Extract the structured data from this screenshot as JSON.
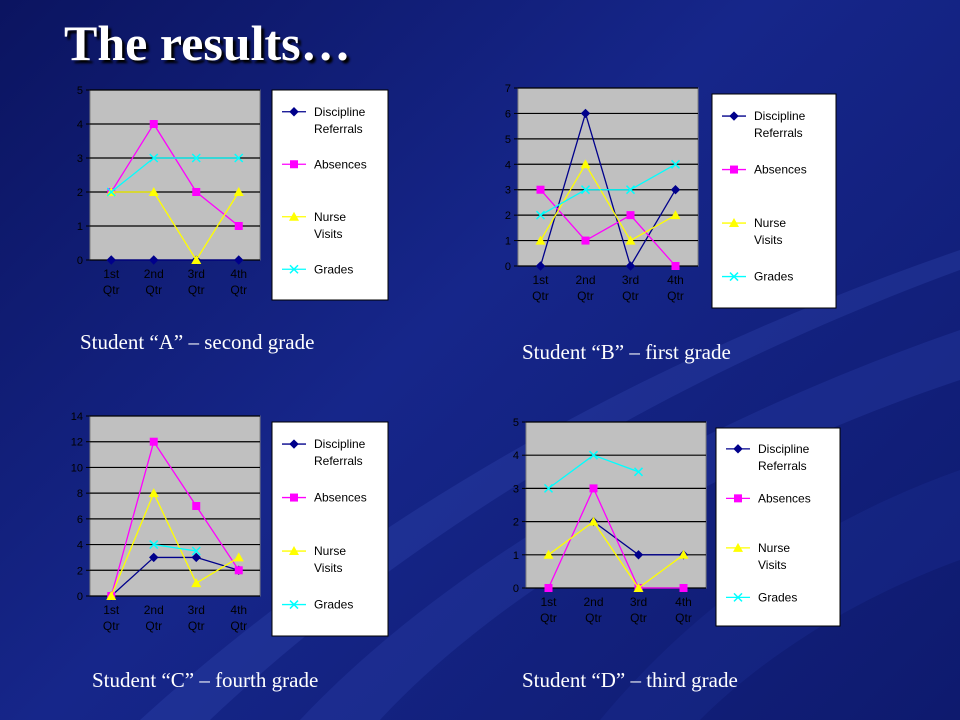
{
  "slide": {
    "title": "The results…"
  },
  "legend_labels": [
    "Discipline Referrals",
    "Absences",
    "Nurse Visits",
    "Grades"
  ],
  "chart_data": [
    {
      "type": "line",
      "caption": "Student “A” – second grade",
      "categories": [
        "1st Qtr",
        "2nd Qtr",
        "3rd Qtr",
        "4th Qtr"
      ],
      "ylim": [
        0,
        5
      ],
      "yticks": [
        0,
        1,
        2,
        3,
        4,
        5
      ],
      "grid": true,
      "legend": "right",
      "series": [
        {
          "name": "Discipline Referrals",
          "color": "#00008b",
          "marker": "diamond",
          "values": [
            0,
            0,
            0,
            0
          ]
        },
        {
          "name": "Absences",
          "color": "#ff00ff",
          "marker": "square",
          "values": [
            2,
            4,
            2,
            1
          ]
        },
        {
          "name": "Nurse Visits",
          "color": "#ffff00",
          "marker": "triangle",
          "values": [
            2,
            2,
            0,
            2
          ]
        },
        {
          "name": "Grades",
          "color": "#00ffff",
          "marker": "x",
          "values": [
            2,
            3,
            3,
            3
          ]
        }
      ]
    },
    {
      "type": "line",
      "caption": "Student “B” – first grade",
      "categories": [
        "1st Qtr",
        "2nd Qtr",
        "3rd Qtr",
        "4th Qtr"
      ],
      "ylim": [
        0,
        7
      ],
      "yticks": [
        0,
        1,
        2,
        3,
        4,
        5,
        6,
        7
      ],
      "grid": true,
      "legend": "right",
      "series": [
        {
          "name": "Discipline Referrals",
          "color": "#00008b",
          "marker": "diamond",
          "values": [
            0,
            6,
            0,
            3
          ]
        },
        {
          "name": "Absences",
          "color": "#ff00ff",
          "marker": "square",
          "values": [
            3,
            1,
            2,
            0
          ]
        },
        {
          "name": "Nurse Visits",
          "color": "#ffff00",
          "marker": "triangle",
          "values": [
            1,
            4,
            1,
            2
          ]
        },
        {
          "name": "Grades",
          "color": "#00ffff",
          "marker": "x",
          "values": [
            2,
            3,
            3,
            4
          ]
        }
      ]
    },
    {
      "type": "line",
      "caption": "Student “C” – fourth grade",
      "categories": [
        "1st Qtr",
        "2nd Qtr",
        "3rd Qtr",
        "4th Qtr"
      ],
      "ylim": [
        0,
        14
      ],
      "yticks": [
        0,
        2,
        4,
        6,
        8,
        10,
        12,
        14
      ],
      "grid": true,
      "legend": "right",
      "series": [
        {
          "name": "Discipline Referrals",
          "color": "#00008b",
          "marker": "diamond",
          "values": [
            0,
            3,
            3,
            2
          ]
        },
        {
          "name": "Absences",
          "color": "#ff00ff",
          "marker": "square",
          "values": [
            0,
            12,
            7,
            2
          ]
        },
        {
          "name": "Nurse Visits",
          "color": "#ffff00",
          "marker": "triangle",
          "values": [
            0,
            8,
            1,
            3
          ]
        },
        {
          "name": "Grades",
          "color": "#00ffff",
          "marker": "x",
          "values": [
            null,
            4,
            3.5,
            null
          ]
        }
      ]
    },
    {
      "type": "line",
      "caption": "Student “D” – third grade",
      "categories": [
        "1st Qtr",
        "2nd Qtr",
        "3rd Qtr",
        "4th Qtr"
      ],
      "ylim": [
        0,
        5
      ],
      "yticks": [
        0,
        1,
        2,
        3,
        4,
        5
      ],
      "grid": true,
      "legend": "right",
      "series": [
        {
          "name": "Discipline Referrals",
          "color": "#00008b",
          "marker": "diamond",
          "values": [
            null,
            2,
            1,
            1
          ]
        },
        {
          "name": "Absences",
          "color": "#ff00ff",
          "marker": "square",
          "values": [
            0,
            3,
            0,
            0
          ]
        },
        {
          "name": "Nurse Visits",
          "color": "#ffff00",
          "marker": "triangle",
          "values": [
            1,
            2,
            0,
            1
          ]
        },
        {
          "name": "Grades",
          "color": "#00ffff",
          "marker": "x",
          "values": [
            3,
            4,
            3.5,
            null
          ]
        }
      ]
    }
  ]
}
